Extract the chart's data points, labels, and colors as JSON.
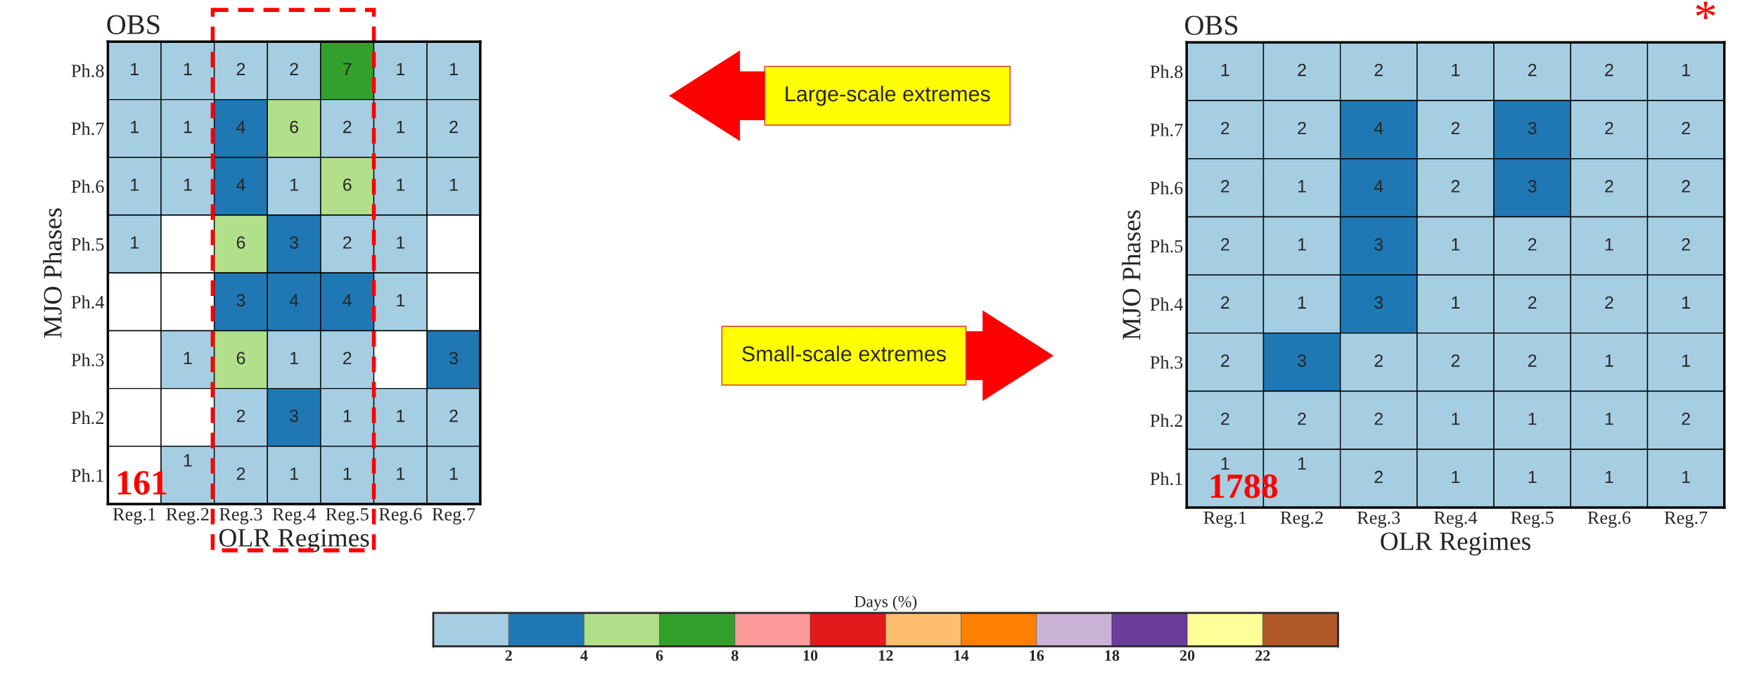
{
  "chart_data": [
    {
      "type": "heatmap",
      "title": "OBS",
      "xlabel": "OLR Regimes",
      "ylabel": "MJO Phases",
      "clabel": "Days (%)",
      "categories": [
        "Reg.1",
        "Reg.2",
        "Reg.3",
        "Reg.4",
        "Reg.5",
        "Reg.6",
        "Reg.7"
      ],
      "y_categories": [
        "Ph.8",
        "Ph.7",
        "Ph.6",
        "Ph.5",
        "Ph.4",
        "Ph.3",
        "Ph.2",
        "Ph.1"
      ],
      "cells": [
        [
          1,
          1,
          2,
          2,
          7,
          1,
          1
        ],
        [
          1,
          1,
          4,
          6,
          2,
          1,
          2
        ],
        [
          1,
          1,
          4,
          1,
          6,
          1,
          1
        ],
        [
          1,
          null,
          6,
          3,
          2,
          1,
          null
        ],
        [
          null,
          null,
          3,
          4,
          4,
          1,
          null
        ],
        [
          null,
          1,
          6,
          1,
          2,
          null,
          3
        ],
        [
          null,
          null,
          2,
          3,
          1,
          1,
          2
        ],
        [
          null,
          1,
          2,
          1,
          1,
          1,
          1
        ]
      ],
      "data_labels": true,
      "clim": [
        0,
        24
      ],
      "cticks": [
        2,
        4,
        6,
        8,
        10,
        12,
        14,
        16,
        18,
        20,
        22
      ],
      "colors": [
        "#a6cee3",
        "#1f78b4",
        "#b2df8a",
        "#33a02c",
        "#fb9a99",
        "#e31a1c",
        "#fdbf6f",
        "#ff7f00",
        "#cab2d6",
        "#6a3d9a",
        "#ffff99",
        "#b15928"
      ],
      "annotations": [
        "161",
        "Large-scale extremes"
      ]
    },
    {
      "type": "heatmap",
      "title": "OBS",
      "xlabel": "OLR Regimes",
      "ylabel": "MJO Phases",
      "categories": [
        "Reg.1",
        "Reg.2",
        "Reg.3",
        "Reg.4",
        "Reg.5",
        "Reg.6",
        "Reg.7"
      ],
      "y_categories": [
        "Ph.8",
        "Ph.7",
        "Ph.6",
        "Ph.5",
        "Ph.4",
        "Ph.3",
        "Ph.2",
        "Ph.1"
      ],
      "cells": [
        [
          1,
          2,
          2,
          1,
          2,
          2,
          1
        ],
        [
          2,
          2,
          4,
          2,
          3,
          2,
          2
        ],
        [
          2,
          1,
          4,
          2,
          3,
          2,
          2
        ],
        [
          2,
          1,
          3,
          1,
          2,
          1,
          2
        ],
        [
          2,
          1,
          3,
          1,
          2,
          2,
          1
        ],
        [
          2,
          3,
          2,
          2,
          2,
          1,
          1
        ],
        [
          2,
          2,
          2,
          1,
          1,
          1,
          2
        ],
        [
          1,
          1,
          2,
          1,
          1,
          1,
          1
        ]
      ],
      "data_labels": true,
      "colors": [
        "#a6cee3",
        "#1f78b4",
        "#b2df8a",
        "#33a02c",
        "#fb9a99",
        "#e31a1c",
        "#fdbf6f",
        "#ff7f00",
        "#cab2d6",
        "#6a3d9a",
        "#ffff99",
        "#b15928"
      ],
      "annotations": [
        "1788",
        "*",
        "Small-scale extremes"
      ]
    }
  ]
}
